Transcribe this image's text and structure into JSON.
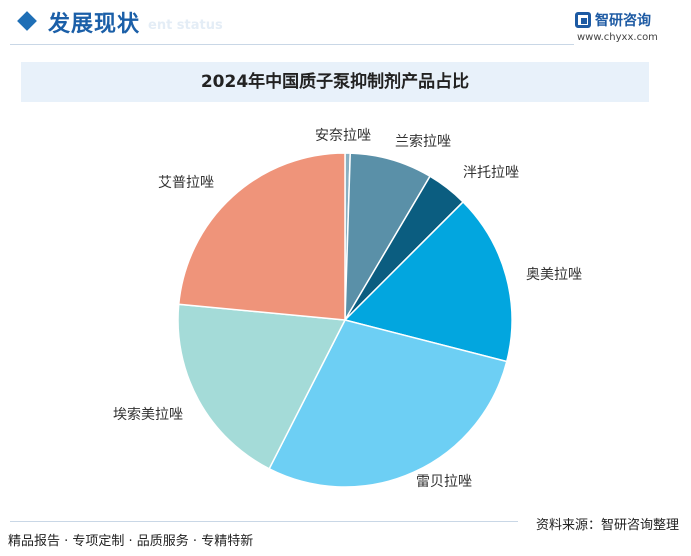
{
  "header": {
    "section_title": "发展现状",
    "section_subtitle": "ent status",
    "logo_name": "智研咨询",
    "logo_url": "www.chyxx.com"
  },
  "chart_data": {
    "type": "pie",
    "title": "2024年中国质子泵抑制剂产品占比",
    "slices": [
      {
        "label": "安奈拉唑",
        "value": 0.5,
        "color": "#8ab0c2"
      },
      {
        "label": "兰索拉唑",
        "value": 8.0,
        "color": "#5a90a8"
      },
      {
        "label": "泮托拉唑",
        "value": 4.0,
        "color": "#0b5d80"
      },
      {
        "label": "奥美拉唑",
        "value": 16.5,
        "color": "#02a6df"
      },
      {
        "label": "雷贝拉唑",
        "value": 28.5,
        "color": "#6dcff4"
      },
      {
        "label": "埃索美拉唑",
        "value": 19.0,
        "color": "#a4dbd8"
      },
      {
        "label": "艾普拉唑",
        "value": 23.5,
        "color": "#ef947a"
      }
    ]
  },
  "footer": {
    "left": "精品报告 · 专项定制 · 品质服务 · 专精特新",
    "right": "资料来源：智研咨询整理"
  }
}
